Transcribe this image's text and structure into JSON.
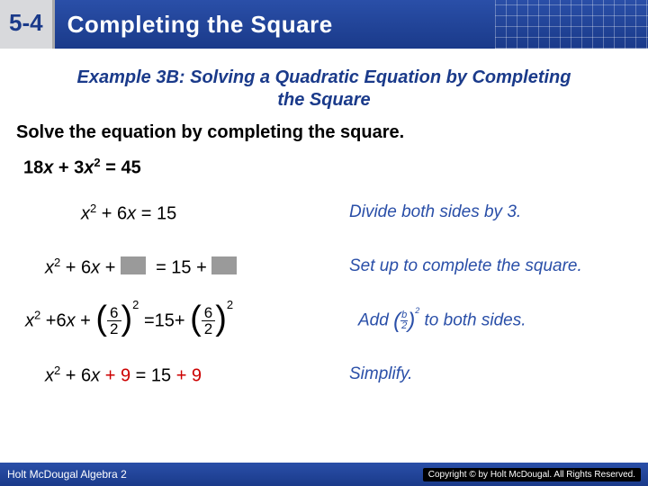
{
  "header": {
    "section": "5-4",
    "title": "Completing the Square"
  },
  "example_title": "Example 3B: Solving a Quadratic Equation by Completing the Square",
  "instruction": "Solve the equation by completing the square.",
  "given_html": "18<span class='it'>x</span> + 3<span class='it'>x</span><span class='sup'>2</span> = 45",
  "steps": [
    {
      "left_html": "<span class='it'>x</span><span class='sup'>2</span> + 6<span class='it'>x</span> = 15",
      "right": "Divide both sides by 3."
    },
    {
      "left_html": "<span class='it'>x</span><span class='sup'>2</span> + 6<span class='it'>x</span> + <span class='blank'></span>&nbsp; = 15 + <span class='blank'></span>",
      "right": "Set up to complete the square."
    },
    {
      "left_html": "<span class='it'>x</span><span style='font-size:0.65em;vertical-align:super'>2</span> +6<span class='it'>x</span> + <span class='paren'>(</span><span class='frac'><span class='num'>6</span><span class='den'>2</span></span><span class='paren'>)</span><span class='psup'>2</span> =15+ <span class='paren'>(</span><span class='frac'><span class='num'>6</span><span class='den'>2</span></span><span class='paren'>)</span><span class='psup'>2</span>",
      "right_html": "Add <span class='smparen'>(</span><span class='fracsmall'><span class='num'><i>b</i></span><span class='den'>2</span></span><span class='smparen'>)</span><span class='smsup'>2</span> to both sides."
    },
    {
      "left_html": "<span class='it'>x</span><span class='sup'>2</span> + 6<span class='it'>x</span> <span class='red'>+ 9</span> = 15 <span class='red'>+ 9</span>",
      "right": "Simplify."
    }
  ],
  "footer": {
    "left": "Holt McDougal Algebra 2",
    "right": "Copyright © by Holt McDougal. All Rights Reserved."
  }
}
